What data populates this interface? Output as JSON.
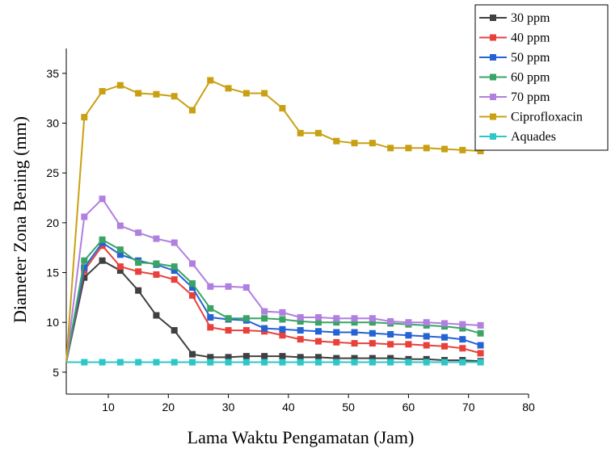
{
  "chart_data": {
    "type": "line",
    "title": "",
    "xlabel": "Lama Waktu Pengamatan (Jam)",
    "ylabel": "Diameter Zona Bening (mm)",
    "xlim": [
      3,
      80
    ],
    "ylim": [
      2.8,
      37.5
    ],
    "xticks": [
      10,
      20,
      30,
      40,
      50,
      60,
      70,
      80
    ],
    "yticks": [
      5,
      10,
      15,
      20,
      25,
      30,
      35
    ],
    "grid": false,
    "legend_position": "top-right",
    "x": [
      3,
      6,
      9,
      12,
      15,
      18,
      21,
      24,
      27,
      30,
      33,
      36,
      39,
      42,
      45,
      48,
      51,
      54,
      57,
      60,
      63,
      66,
      69,
      72
    ],
    "series": [
      {
        "name": "30 ppm",
        "color": "#404040",
        "marker": "square",
        "values": [
          6.0,
          14.5,
          16.2,
          15.2,
          13.2,
          10.7,
          9.2,
          6.8,
          6.5,
          6.5,
          6.6,
          6.6,
          6.6,
          6.5,
          6.5,
          6.4,
          6.4,
          6.4,
          6.4,
          6.3,
          6.3,
          6.2,
          6.2,
          6.1
        ]
      },
      {
        "name": "40 ppm",
        "color": "#e8413c",
        "marker": "square",
        "values": [
          6.0,
          15.2,
          17.7,
          15.6,
          15.1,
          14.8,
          14.3,
          12.7,
          9.5,
          9.2,
          9.2,
          9.1,
          8.7,
          8.3,
          8.1,
          8.0,
          7.9,
          7.9,
          7.8,
          7.8,
          7.7,
          7.6,
          7.4,
          6.9
        ]
      },
      {
        "name": "50 ppm",
        "color": "#2563d4",
        "marker": "square",
        "values": [
          6.0,
          15.5,
          18.0,
          16.8,
          16.2,
          15.8,
          15.2,
          13.5,
          10.5,
          10.3,
          10.2,
          9.4,
          9.3,
          9.2,
          9.1,
          9.0,
          9.0,
          8.9,
          8.8,
          8.7,
          8.6,
          8.5,
          8.3,
          7.7
        ]
      },
      {
        "name": "60 ppm",
        "color": "#3aa464",
        "marker": "square",
        "values": [
          6.0,
          16.2,
          18.3,
          17.3,
          16.0,
          15.9,
          15.6,
          13.9,
          11.4,
          10.4,
          10.4,
          10.4,
          10.3,
          10.1,
          10.0,
          10.0,
          10.0,
          10.0,
          9.9,
          9.8,
          9.7,
          9.6,
          9.4,
          8.9
        ]
      },
      {
        "name": "70 ppm",
        "color": "#b07fe0",
        "marker": "square",
        "values": [
          6.0,
          20.6,
          22.4,
          19.7,
          19.0,
          18.4,
          18.0,
          15.9,
          13.6,
          13.6,
          13.5,
          11.1,
          11.0,
          10.5,
          10.5,
          10.4,
          10.4,
          10.4,
          10.1,
          10.0,
          10.0,
          9.9,
          9.8,
          9.7
        ]
      },
      {
        "name": "Ciprofloxacin",
        "color": "#c9a012",
        "marker": "square",
        "values": [
          6.0,
          30.6,
          33.2,
          33.8,
          33.0,
          32.9,
          32.7,
          31.3,
          34.3,
          33.5,
          33.0,
          33.0,
          31.5,
          29.0,
          29.0,
          28.2,
          28.0,
          28.0,
          27.5,
          27.5,
          27.5,
          27.4,
          27.3,
          27.2
        ]
      },
      {
        "name": "Aquades",
        "color": "#2ec6c6",
        "marker": "square",
        "values": [
          6.0,
          6.0,
          6.0,
          6.0,
          6.0,
          6.0,
          6.0,
          6.0,
          6.0,
          6.0,
          6.0,
          6.0,
          6.0,
          6.0,
          6.0,
          6.0,
          6.0,
          6.0,
          6.0,
          6.0,
          6.0,
          6.0,
          6.0,
          6.0
        ]
      }
    ]
  }
}
